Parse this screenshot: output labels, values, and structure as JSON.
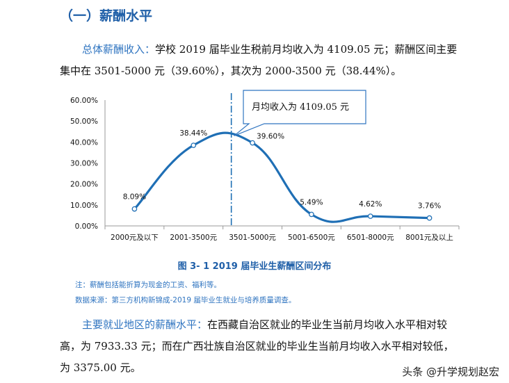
{
  "section": {
    "title": "（一）薪酬水平"
  },
  "para1": {
    "lead": "总体薪酬收入：",
    "line1_rest": "学校 2019 届毕业生税前月均收入为 4109.05 元；薪酬区间主要",
    "line2": "集中在 3501-5000 元（39.60%），其次为 2000-3500 元（38.44%）。"
  },
  "chart_data": {
    "type": "line",
    "categories": [
      "2000元及以下",
      "2001-3500元",
      "3501-5000元",
      "5001-6500元",
      "6501-8000元",
      "8001元及以上"
    ],
    "series": [
      {
        "values": [
          8.09,
          38.44,
          39.6,
          5.49,
          4.62,
          3.76
        ]
      }
    ],
    "data_labels": [
      "8.09%",
      "38.44%",
      "39.60%",
      "5.49%",
      "4.62%",
      "3.76%"
    ],
    "y_ticks": [
      "0.00%",
      "10.00%",
      "20.00%",
      "30.00%",
      "40.00%",
      "50.00%",
      "60.00%"
    ],
    "ylim": [
      0,
      60
    ],
    "annotation": "月均收入为 4109.05 元",
    "marker_value": 4109.05,
    "grid": false,
    "colors": {
      "line": "#1f6fb5",
      "axis": "#9a9a9a",
      "callout": "#2f74c0"
    }
  },
  "figure": {
    "caption": "图 3- 1    2019 届毕业生薪酬区间分布",
    "note1": "注：薪酬包括能折算为现金的工资、福利等。",
    "note2": "数据来源：第三方机构新锦成-2019 届毕业生就业与培养质量调查。"
  },
  "para2": {
    "lead": "主要就业地区的薪酬水平：",
    "line1_rest": "在西藏自治区就业的毕业生当前月均收入水平相对较",
    "line2": "高，为 7933.33 元；而在广西壮族自治区就业的毕业生当前月均收入水平相对较低，",
    "line3": "为 3375.00 元。"
  },
  "watermark": "头条 @升学规划赵宏"
}
